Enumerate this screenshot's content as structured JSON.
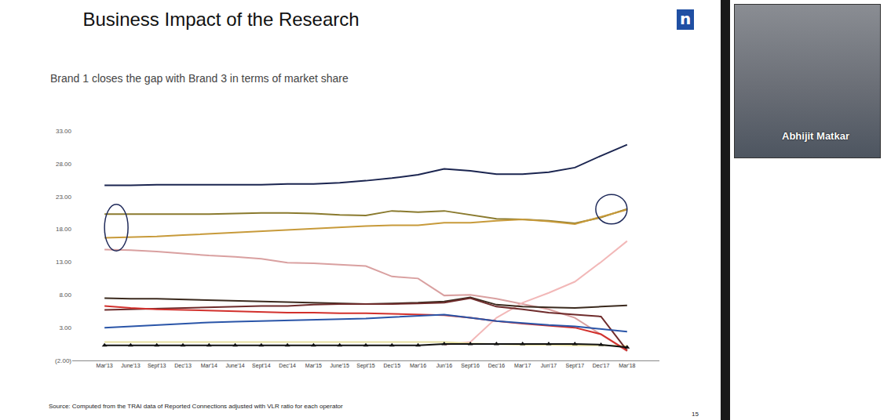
{
  "chart_data": {
    "type": "line",
    "title": "Business Impact of the Research",
    "subtitle": "Brand 1 closes the gap with Brand 3 in terms of market share",
    "categories": [
      "Mar'13",
      "June'13",
      "Sept'13",
      "Dec'13",
      "Mar'14",
      "June'14",
      "Sept'14",
      "Dec'14",
      "Mar'15",
      "June'15",
      "Sept'15",
      "Dec'15",
      "Mar'16",
      "Jun'16",
      "Sept'16",
      "Dec'16",
      "Mar'17",
      "Jun'17",
      "Sept'17",
      "Dec'17",
      "Mar'18"
    ],
    "series": [
      {
        "color": "#1b2550",
        "values": [
          24.7,
          24.7,
          24.8,
          24.8,
          24.8,
          24.8,
          24.8,
          24.9,
          24.9,
          25.1,
          25.4,
          25.8,
          26.3,
          27.2,
          26.9,
          26.4,
          26.4,
          26.7,
          27.4,
          29.2,
          30.9
        ]
      },
      {
        "color": "#8a7a2e",
        "values": [
          20.3,
          20.3,
          20.3,
          20.3,
          20.3,
          20.4,
          20.5,
          20.5,
          20.4,
          20.2,
          20.1,
          20.8,
          20.6,
          20.8,
          20.2,
          19.6,
          19.5,
          19.3,
          18.9,
          19.8,
          21.1
        ]
      },
      {
        "color": "#c79a3a",
        "values": [
          16.7,
          16.8,
          16.9,
          17.1,
          17.3,
          17.5,
          17.7,
          17.9,
          18.1,
          18.3,
          18.5,
          18.6,
          18.6,
          19.0,
          19.0,
          19.3,
          19.5,
          19.2,
          18.8,
          19.9,
          21.0
        ]
      },
      {
        "color": "#d9a0a0",
        "values": [
          14.9,
          14.8,
          14.6,
          14.3,
          14.0,
          13.8,
          13.5,
          12.9,
          12.8,
          12.6,
          12.4,
          10.8,
          10.5,
          7.9,
          8.0,
          7.4,
          6.6,
          5.8,
          4.5,
          2.0,
          -0.6
        ]
      },
      {
        "color": "#f2b8b8",
        "values": [
          null,
          null,
          null,
          null,
          null,
          null,
          null,
          null,
          null,
          null,
          null,
          null,
          null,
          0.4,
          0.8,
          4.5,
          6.8,
          8.3,
          10.0,
          13.0,
          16.2
        ]
      },
      {
        "color": "#e6dfa0",
        "values": [
          0.8,
          0.8,
          0.8,
          0.8,
          0.8,
          0.8,
          0.8,
          0.8,
          0.8,
          0.8,
          0.8,
          0.8,
          0.8,
          0.8,
          0.6,
          0.5,
          0.4,
          0.4,
          0.3,
          0.3,
          0.2
        ]
      },
      {
        "color": "#3b2a1e",
        "values": [
          7.5,
          7.4,
          7.4,
          7.3,
          7.2,
          7.1,
          7.0,
          6.9,
          6.8,
          6.7,
          6.6,
          6.7,
          6.8,
          7.0,
          7.6,
          6.5,
          6.2,
          6.1,
          6.0,
          6.2,
          6.4
        ]
      },
      {
        "color": "#6e2b2b",
        "values": [
          5.7,
          5.8,
          5.9,
          6.0,
          6.1,
          6.2,
          6.3,
          6.3,
          6.5,
          6.6,
          6.6,
          6.6,
          6.7,
          6.8,
          7.5,
          6.2,
          5.8,
          5.3,
          5.0,
          4.7,
          -0.5
        ]
      },
      {
        "color": "#d2302c",
        "values": [
          6.3,
          6.0,
          5.8,
          5.7,
          5.6,
          5.5,
          5.4,
          5.3,
          5.3,
          5.2,
          5.2,
          5.1,
          5.0,
          4.9,
          4.5,
          4.0,
          3.6,
          3.3,
          3.0,
          2.0,
          -0.5
        ]
      },
      {
        "color": "#2a55a8",
        "values": [
          3.0,
          3.2,
          3.4,
          3.6,
          3.8,
          3.9,
          4.0,
          4.1,
          4.2,
          4.3,
          4.4,
          4.6,
          4.8,
          5.0,
          4.5,
          4.0,
          3.7,
          3.4,
          3.2,
          2.8,
          2.4
        ]
      },
      {
        "color": "#111111",
        "marker": "triangle",
        "values": [
          0.3,
          0.3,
          0.3,
          0.3,
          0.3,
          0.3,
          0.3,
          0.3,
          0.3,
          0.3,
          0.3,
          0.3,
          0.3,
          0.5,
          0.5,
          0.5,
          0.5,
          0.5,
          0.5,
          0.4,
          0.0
        ]
      }
    ],
    "ylim": [
      -2,
      33
    ],
    "yticks": [
      {
        "value": -2,
        "label": "(2.00)"
      },
      {
        "value": 3,
        "label": "3.00"
      },
      {
        "value": 8,
        "label": "8.00"
      },
      {
        "value": 13,
        "label": "13.00"
      },
      {
        "value": 18,
        "label": "18.00"
      },
      {
        "value": 23,
        "label": "23.00"
      },
      {
        "value": 28,
        "label": "28.00"
      },
      {
        "value": 33,
        "label": "33.00"
      }
    ],
    "grid": false
  },
  "slide": {
    "logo": "n",
    "source": "Source: Computed from the TRAI data of Reported Connections adjusted with VLR ratio for each operator",
    "page": "15"
  },
  "video": {
    "name": "Abhijit Matkar"
  }
}
